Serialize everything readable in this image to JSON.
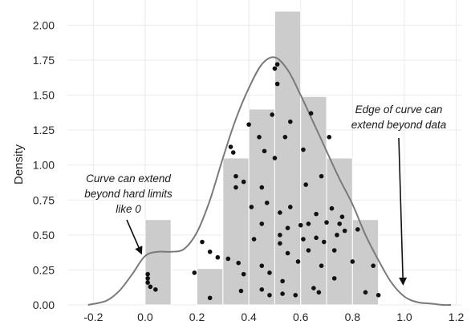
{
  "chart_data": {
    "type": "histogram",
    "title": "",
    "xlabel": "",
    "ylabel": "Density",
    "xlim": [
      -0.3,
      1.22
    ],
    "ylim": [
      0,
      2.18
    ],
    "grid": true,
    "x_ticks": [
      -0.2,
      0.0,
      0.2,
      0.4,
      0.6,
      0.8,
      1.0,
      1.2
    ],
    "x_tick_labels": [
      "-0.2",
      "0.0",
      "0.2",
      "0.4",
      "0.6",
      "0.8",
      "1.0",
      "1.2"
    ],
    "y_ticks": [
      0.0,
      0.25,
      0.5,
      0.75,
      1.0,
      1.25,
      1.5,
      1.75,
      2.0
    ],
    "y_tick_labels": [
      "0.00",
      "0.25",
      "0.50",
      "0.75",
      "1.00",
      "1.25",
      "1.50",
      "1.75",
      "2.00"
    ],
    "histogram": {
      "bin_edges": [
        0.0,
        0.1,
        0.2,
        0.3,
        0.4,
        0.5,
        0.6,
        0.7,
        0.8,
        0.9
      ],
      "densities": [
        0.61,
        0.0,
        0.26,
        1.05,
        1.4,
        2.1,
        1.49,
        1.05,
        0.61
      ],
      "color": "#cccccc"
    },
    "kde_curve": {
      "color": "#7a7a7a",
      "x": [
        -0.22,
        -0.15,
        -0.1,
        -0.05,
        0.0,
        0.05,
        0.1,
        0.15,
        0.2,
        0.25,
        0.3,
        0.35,
        0.4,
        0.45,
        0.5,
        0.55,
        0.6,
        0.65,
        0.7,
        0.75,
        0.8,
        0.85,
        0.9,
        0.95,
        1.0,
        1.05,
        1.1,
        1.15,
        1.18
      ],
      "y": [
        0.0,
        0.03,
        0.1,
        0.22,
        0.35,
        0.38,
        0.38,
        0.4,
        0.52,
        0.75,
        1.05,
        1.33,
        1.55,
        1.72,
        1.77,
        1.68,
        1.5,
        1.3,
        1.1,
        0.9,
        0.72,
        0.5,
        0.32,
        0.16,
        0.06,
        0.02,
        0.01,
        0.0,
        0.0
      ]
    },
    "scatter_points": {
      "color": "#111111",
      "points": [
        [
          0.01,
          0.22
        ],
        [
          0.01,
          0.19
        ],
        [
          0.01,
          0.16
        ],
        [
          0.02,
          0.13
        ],
        [
          0.04,
          0.11
        ],
        [
          0.19,
          0.23
        ],
        [
          0.22,
          0.45
        ],
        [
          0.25,
          0.38
        ],
        [
          0.25,
          0.05
        ],
        [
          0.28,
          0.34
        ],
        [
          0.32,
          0.33
        ],
        [
          0.33,
          1.13
        ],
        [
          0.34,
          1.09
        ],
        [
          0.35,
          0.92
        ],
        [
          0.35,
          0.84
        ],
        [
          0.36,
          0.3
        ],
        [
          0.37,
          0.1
        ],
        [
          0.38,
          0.88
        ],
        [
          0.38,
          0.22
        ],
        [
          0.4,
          1.29
        ],
        [
          0.41,
          0.7
        ],
        [
          0.42,
          0.47
        ],
        [
          0.44,
          1.2
        ],
        [
          0.45,
          0.84
        ],
        [
          0.45,
          0.58
        ],
        [
          0.45,
          0.28
        ],
        [
          0.45,
          0.11
        ],
        [
          0.46,
          1.1
        ],
        [
          0.47,
          0.73
        ],
        [
          0.48,
          0.23
        ],
        [
          0.48,
          0.07
        ],
        [
          0.49,
          1.36
        ],
        [
          0.5,
          1.05
        ],
        [
          0.5,
          1.69
        ],
        [
          0.51,
          1.72
        ],
        [
          0.51,
          1.58
        ],
        [
          0.52,
          0.66
        ],
        [
          0.52,
          0.5
        ],
        [
          0.52,
          0.44
        ],
        [
          0.53,
          0.17
        ],
        [
          0.53,
          0.08
        ],
        [
          0.54,
          1.2
        ],
        [
          0.55,
          0.55
        ],
        [
          0.55,
          0.37
        ],
        [
          0.56,
          0.7
        ],
        [
          0.56,
          1.31
        ],
        [
          0.58,
          0.07
        ],
        [
          0.59,
          0.31
        ],
        [
          0.6,
          0.57
        ],
        [
          0.61,
          1.11
        ],
        [
          0.61,
          0.47
        ],
        [
          0.62,
          0.86
        ],
        [
          0.63,
          0.58
        ],
        [
          0.63,
          0.39
        ],
        [
          0.64,
          1.37
        ],
        [
          0.65,
          0.12
        ],
        [
          0.66,
          0.65
        ],
        [
          0.66,
          0.48
        ],
        [
          0.67,
          0.09
        ],
        [
          0.68,
          0.92
        ],
        [
          0.68,
          0.28
        ],
        [
          0.69,
          0.45
        ],
        [
          0.7,
          0.59
        ],
        [
          0.71,
          1.2
        ],
        [
          0.72,
          0.69
        ],
        [
          0.73,
          0.39
        ],
        [
          0.73,
          0.19
        ],
        [
          0.74,
          0.5
        ],
        [
          0.75,
          0.58
        ],
        [
          0.76,
          0.63
        ],
        [
          0.77,
          0.53
        ],
        [
          0.8,
          0.31
        ],
        [
          0.82,
          0.54
        ],
        [
          0.85,
          0.09
        ],
        [
          0.88,
          0.28
        ],
        [
          0.9,
          0.07
        ]
      ]
    },
    "annotations": [
      {
        "lines": [
          "Curve can extend",
          "beyond hard limits",
          "like 0"
        ],
        "arrow_to_data": [
          -0.015,
          0.37
        ]
      },
      {
        "lines": [
          "Edge of curve can",
          "extend beyond data"
        ],
        "arrow_to_data": [
          0.995,
          0.15
        ]
      }
    ]
  }
}
